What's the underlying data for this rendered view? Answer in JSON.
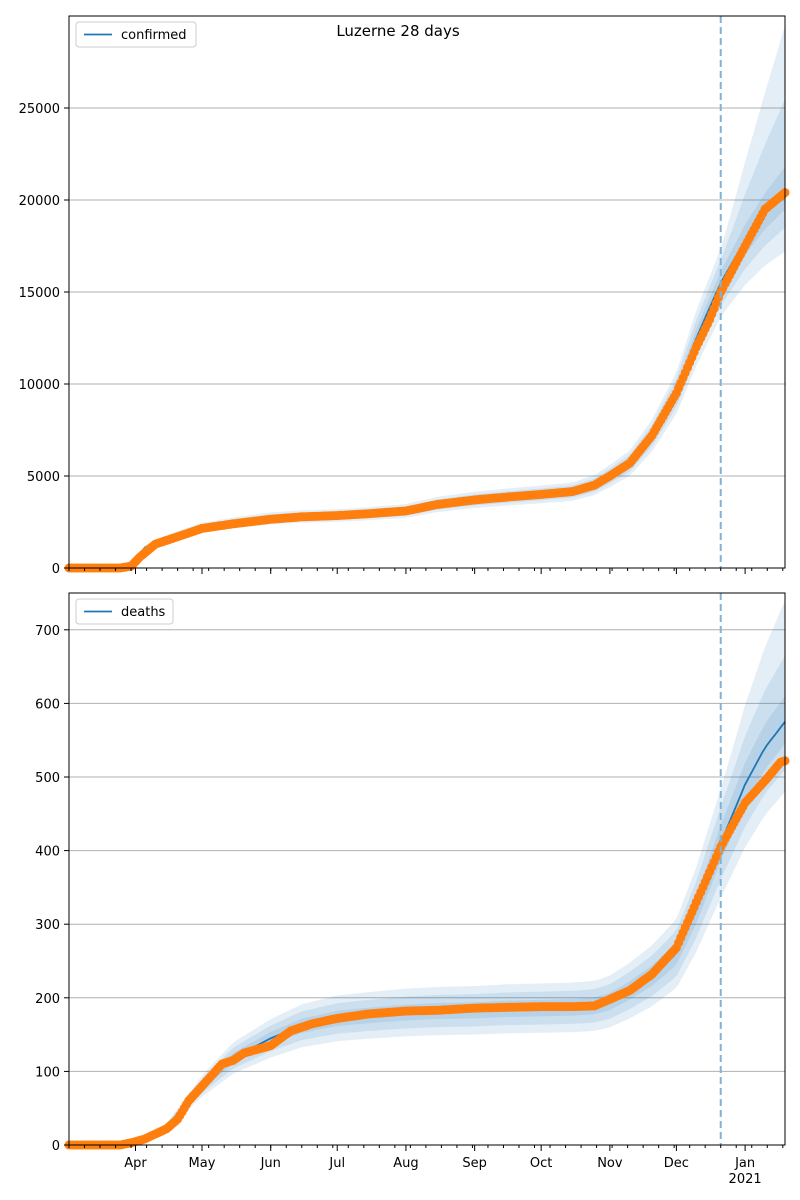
{
  "figure": {
    "title": "Luzerne 28 days",
    "colors": {
      "model_line": "#1f77b4",
      "observed": "#ff7f0e",
      "band": "#1f77b4",
      "forecast_marker": "#7fb3d5",
      "grid": "#b0b0b0"
    }
  },
  "chart_data": [
    {
      "type": "line",
      "title": "Luzerne 28 days",
      "xlabel": "",
      "ylabel": "",
      "x_range": [
        "2020-03-02",
        "2021-01-19"
      ],
      "ylim": [
        0,
        30000
      ],
      "y_ticks": [
        0,
        5000,
        10000,
        15000,
        20000,
        25000
      ],
      "x_ticks": [
        "Apr",
        "May",
        "Jun",
        "Jul",
        "Aug",
        "Sep",
        "Oct",
        "Nov",
        "Dec",
        "Jan\n2021"
      ],
      "x_tick_labels_shown": false,
      "grid": "horizontal",
      "legend": {
        "position": "top-left",
        "entries": [
          "confirmed"
        ]
      },
      "forecast_start": "2020-12-21",
      "series": [
        {
          "name": "confirmed",
          "kind": "model median",
          "x": [
            "2020-03-02",
            "2020-03-25",
            "2020-03-30",
            "2020-04-05",
            "2020-04-15",
            "2020-05-01",
            "2020-05-15",
            "2020-06-01",
            "2020-06-15",
            "2020-07-01",
            "2020-07-15",
            "2020-08-01",
            "2020-08-15",
            "2020-09-01",
            "2020-09-15",
            "2020-10-01",
            "2020-10-15",
            "2020-10-25",
            "2020-11-01",
            "2020-11-10",
            "2020-11-20",
            "2020-12-01",
            "2020-12-10",
            "2020-12-21",
            "2021-01-01",
            "2021-01-10",
            "2021-01-19"
          ],
          "values": [
            0,
            0,
            150,
            1100,
            1600,
            2200,
            2450,
            2700,
            2800,
            2850,
            2950,
            3100,
            3450,
            3700,
            3850,
            4000,
            4150,
            4500,
            5000,
            5700,
            7200,
            9500,
            12500,
            15500,
            17800,
            19300,
            20500
          ],
          "band_ratios": [
            {
              "lo": 0.96,
              "hi": 1.04
            },
            {
              "lo": 0.92,
              "hi": 1.08
            },
            {
              "lo": 0.88,
              "hi": 1.12
            }
          ],
          "band_end": [
            {
              "lo": 19500,
              "hi": 21800
            },
            {
              "lo": 18500,
              "hi": 25500
            },
            {
              "lo": 17200,
              "hi": 29500
            }
          ]
        },
        {
          "name": "observed",
          "kind": "points",
          "x": [
            "2020-03-02",
            "2020-03-25",
            "2020-03-30",
            "2020-04-03",
            "2020-04-10",
            "2020-04-20",
            "2020-05-01",
            "2020-05-15",
            "2020-06-01",
            "2020-06-15",
            "2020-07-01",
            "2020-07-15",
            "2020-08-01",
            "2020-08-15",
            "2020-09-01",
            "2020-09-15",
            "2020-10-01",
            "2020-10-15",
            "2020-10-25",
            "2020-11-01",
            "2020-11-10",
            "2020-11-20",
            "2020-12-01",
            "2020-12-10",
            "2020-12-16",
            "2020-12-21",
            "2021-01-01",
            "2021-01-10",
            "2021-01-19"
          ],
          "values": [
            0,
            0,
            100,
            600,
            1300,
            1700,
            2150,
            2400,
            2650,
            2780,
            2850,
            2950,
            3100,
            3450,
            3700,
            3850,
            4000,
            4150,
            4500,
            5000,
            5700,
            7200,
            9500,
            12000,
            13500,
            15000,
            17500,
            19500,
            20400
          ]
        }
      ]
    },
    {
      "type": "line",
      "title": "",
      "xlabel": "",
      "ylabel": "",
      "x_range": [
        "2020-03-02",
        "2021-01-19"
      ],
      "ylim": [
        0,
        750
      ],
      "y_ticks": [
        0,
        100,
        200,
        300,
        400,
        500,
        600,
        700
      ],
      "x_ticks": [
        "Apr",
        "May",
        "Jun",
        "Jul",
        "Aug",
        "Sep",
        "Oct",
        "Nov",
        "Dec",
        "Jan\n2021"
      ],
      "x_tick_labels_shown": true,
      "grid": "horizontal",
      "legend": {
        "position": "top-left",
        "entries": [
          "deaths"
        ]
      },
      "forecast_start": "2020-12-21",
      "series": [
        {
          "name": "deaths",
          "kind": "model median",
          "x": [
            "2020-03-02",
            "2020-03-28",
            "2020-04-05",
            "2020-04-15",
            "2020-05-01",
            "2020-05-15",
            "2020-06-01",
            "2020-06-15",
            "2020-07-01",
            "2020-07-15",
            "2020-08-01",
            "2020-08-15",
            "2020-09-01",
            "2020-09-15",
            "2020-10-01",
            "2020-10-15",
            "2020-10-25",
            "2020-11-01",
            "2020-11-10",
            "2020-11-20",
            "2020-12-01",
            "2020-12-10",
            "2020-12-21",
            "2021-01-01",
            "2021-01-10",
            "2021-01-19"
          ],
          "values": [
            0,
            0,
            8,
            25,
            80,
            118,
            145,
            162,
            172,
            176,
            180,
            182,
            183,
            185,
            186,
            187,
            189,
            195,
            210,
            230,
            260,
            320,
            410,
            490,
            540,
            575
          ],
          "band_ratios": [
            {
              "lo": 0.94,
              "hi": 1.06
            },
            {
              "lo": 0.88,
              "hi": 1.12
            },
            {
              "lo": 0.82,
              "hi": 1.18
            }
          ],
          "band_end": [
            {
              "lo": 545,
              "hi": 610
            },
            {
              "lo": 510,
              "hi": 665
            },
            {
              "lo": 480,
              "hi": 740
            }
          ]
        },
        {
          "name": "observed",
          "kind": "points",
          "x": [
            "2020-03-02",
            "2020-03-25",
            "2020-03-30",
            "2020-04-05",
            "2020-04-15",
            "2020-04-20",
            "2020-04-25",
            "2020-05-01",
            "2020-05-10",
            "2020-05-15",
            "2020-05-20",
            "2020-06-01",
            "2020-06-10",
            "2020-06-20",
            "2020-07-01",
            "2020-07-15",
            "2020-08-01",
            "2020-08-15",
            "2020-09-01",
            "2020-09-15",
            "2020-10-01",
            "2020-10-15",
            "2020-10-25",
            "2020-11-01",
            "2020-11-10",
            "2020-11-20",
            "2020-12-01",
            "2020-12-10",
            "2020-12-21",
            "2021-01-01",
            "2021-01-10",
            "2021-01-17",
            "2021-01-19"
          ],
          "values": [
            0,
            0,
            3,
            8,
            22,
            35,
            60,
            80,
            110,
            115,
            125,
            135,
            155,
            165,
            172,
            178,
            182,
            183,
            186,
            187,
            188,
            188,
            189,
            198,
            210,
            232,
            268,
            330,
            405,
            465,
            495,
            520,
            522
          ]
        }
      ]
    }
  ]
}
